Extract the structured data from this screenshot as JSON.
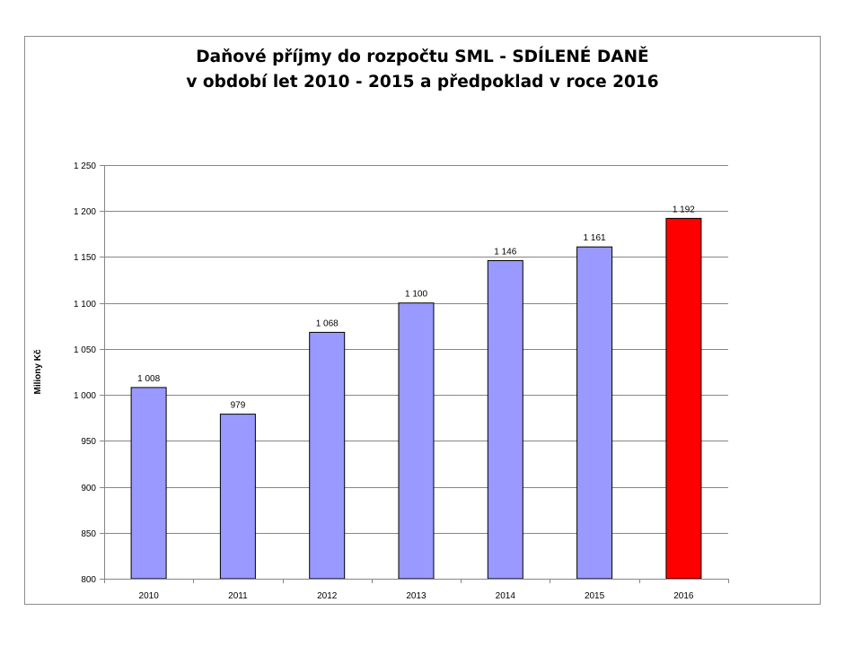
{
  "chart_data": {
    "type": "bar",
    "title": "Daňové příjmy do rozpočtu SML - SDÍLENÉ DANĚ",
    "subtitle": "v období let 2010 - 2015 a předpoklad v roce 2016",
    "ylabel": "Miliony Kč",
    "xlabel": "",
    "ylim": [
      800,
      1250
    ],
    "yticks": [
      800,
      850,
      900,
      950,
      1000,
      1050,
      1100,
      1150,
      1200,
      1250
    ],
    "ytick_labels": [
      "800",
      "850",
      "900",
      "950",
      "1 000",
      "1 050",
      "1 100",
      "1 150",
      "1 200",
      "1 250"
    ],
    "categories": [
      "2010",
      "2011",
      "2012",
      "2013",
      "2014",
      "2015",
      "2016"
    ],
    "values": [
      1008,
      979,
      1068,
      1100,
      1146,
      1161,
      1192
    ],
    "data_labels": [
      "1 008",
      "979",
      "1 068",
      "1 100",
      "1 146",
      "1 161",
      "1 192"
    ],
    "bar_colors": [
      "#9999ff",
      "#9999ff",
      "#9999ff",
      "#9999ff",
      "#9999ff",
      "#9999ff",
      "#ff0000"
    ],
    "grid": true,
    "legend": "none"
  }
}
